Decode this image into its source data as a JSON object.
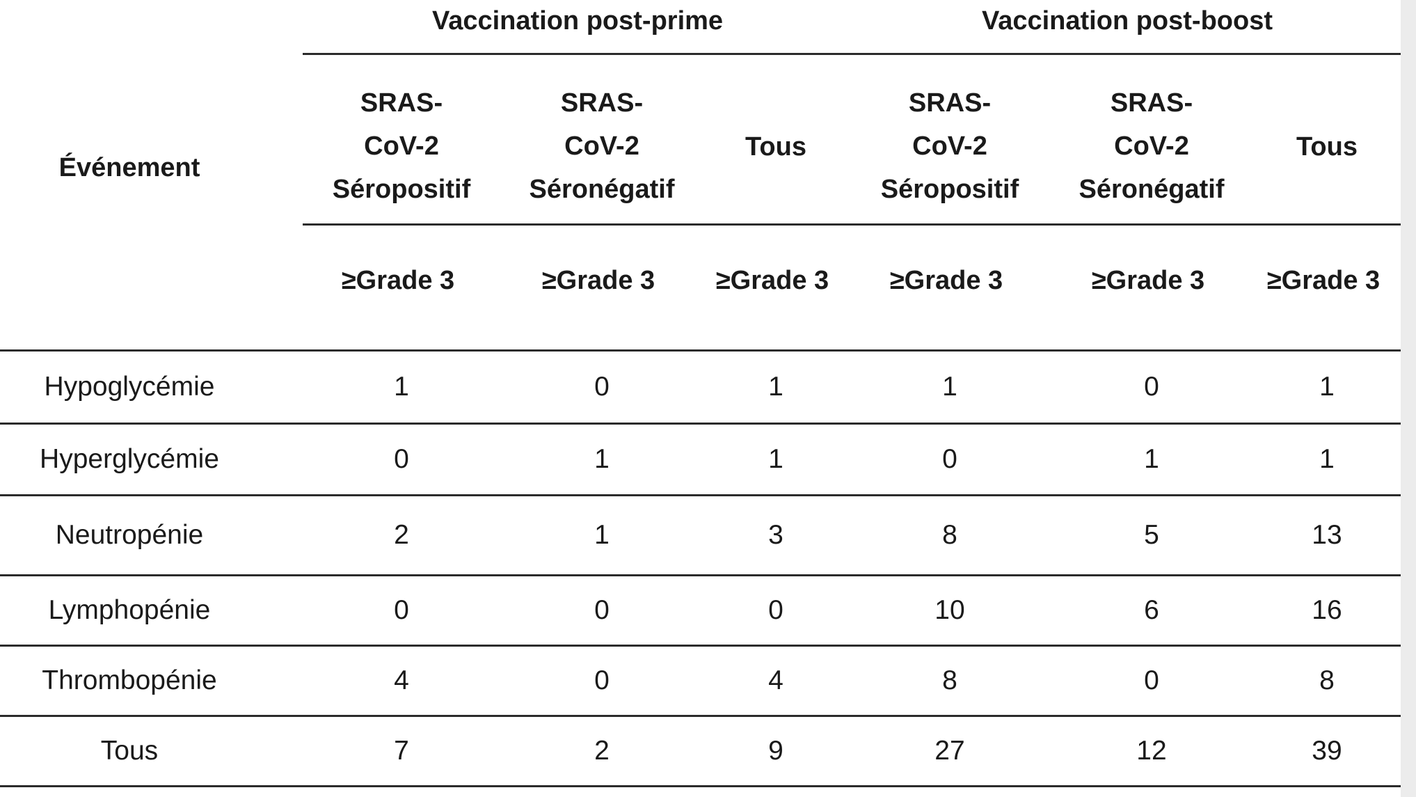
{
  "table": {
    "groups": [
      "Vaccination post-prime",
      "Vaccination post-boost"
    ],
    "row_header": "Événement",
    "columns": [
      [
        "SRAS-",
        "CoV-2",
        "Séropositif"
      ],
      [
        "SRAS-",
        "CoV-2",
        "Séronégatif"
      ],
      [
        "Tous"
      ],
      [
        "SRAS-",
        "CoV-2",
        "Séropositif"
      ],
      [
        "SRAS-",
        "CoV-2",
        "Séronégatif"
      ],
      [
        "Tous"
      ]
    ],
    "grade_labels": [
      "≥Grade 3",
      "≥Grade 3",
      "≥Grade 3",
      "≥Grade 3",
      "≥Grade 3",
      "≥Grade 3"
    ],
    "rows": [
      {
        "event": "Hypoglycémie",
        "values": [
          "1",
          "0",
          "1",
          "1",
          "0",
          "1"
        ]
      },
      {
        "event": "Hyperglycémie",
        "values": [
          "0",
          "1",
          "1",
          "0",
          "1",
          "1"
        ]
      },
      {
        "event": "Neutropénie",
        "values": [
          "2",
          "1",
          "3",
          "8",
          "5",
          "13"
        ]
      },
      {
        "event": "Lymphopénie",
        "values": [
          "0",
          "0",
          "0",
          "10",
          "6",
          "16"
        ]
      },
      {
        "event": "Thrombopénie",
        "values": [
          "4",
          "0",
          "4",
          "8",
          "0",
          "8"
        ]
      },
      {
        "event": "Tous",
        "values": [
          "7",
          "2",
          "9",
          "27",
          "12",
          "39"
        ]
      }
    ]
  }
}
